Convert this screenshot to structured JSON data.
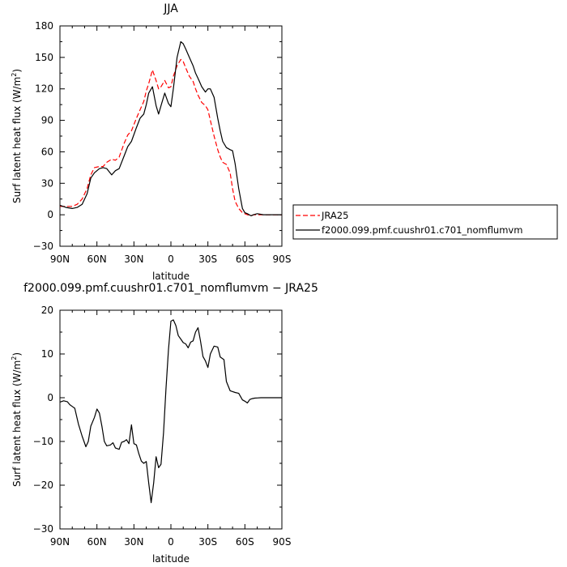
{
  "chart_data": [
    {
      "type": "line",
      "title": "JJA",
      "xlabel": "latitude",
      "ylabel": "Surf latent heat flux (W/m",
      "ylabel_sup": "2",
      "ylabel_tail": ")",
      "xlim": [
        90,
        -90
      ],
      "ylim": [
        -30,
        180
      ],
      "x_ticks": [
        90,
        60,
        30,
        0,
        -30,
        -60,
        -90
      ],
      "x_tick_labels": [
        "90N",
        "60N",
        "30N",
        "0",
        "30S",
        "60S",
        "90S"
      ],
      "y_ticks": [
        -30,
        0,
        30,
        60,
        90,
        120,
        150,
        180
      ],
      "y_tick_labels": [
        "−30",
        "0",
        "30",
        "60",
        "90",
        "120",
        "150",
        "180"
      ],
      "legend_position": "right",
      "series": [
        {
          "name": "JRA25",
          "color": "#ff0000",
          "style": "dashed",
          "x": [
            90,
            85,
            80,
            76,
            72,
            68,
            65,
            62,
            58,
            55,
            52,
            48,
            45,
            42,
            38,
            35,
            32,
            28,
            25,
            22,
            20,
            18,
            15,
            12,
            10,
            8,
            5,
            2,
            0,
            -2,
            -5,
            -8,
            -10,
            -12,
            -15,
            -18,
            -20,
            -22,
            -25,
            -28,
            -30,
            -32,
            -35,
            -38,
            -40,
            -42,
            -45,
            -48,
            -50,
            -52,
            -55,
            -58,
            -60,
            -62,
            -65,
            -67,
            -70,
            -75,
            -80,
            -85,
            -90
          ],
          "values": [
            8,
            8,
            8,
            10,
            15,
            25,
            38,
            45,
            46,
            46,
            50,
            53,
            52,
            55,
            68,
            76,
            80,
            92,
            100,
            108,
            118,
            125,
            138,
            128,
            120,
            122,
            128,
            121,
            122,
            132,
            142,
            148,
            146,
            140,
            132,
            127,
            120,
            114,
            107,
            104,
            100,
            90,
            75,
            62,
            55,
            50,
            48,
            40,
            25,
            13,
            6,
            2,
            1,
            0,
            -1,
            0,
            0,
            0,
            0,
            0,
            0
          ]
        },
        {
          "name": "f2000.099.pmf.cuushr01.c701_nomflumvm",
          "color": "#000000",
          "style": "solid",
          "x": [
            90,
            85,
            80,
            76,
            72,
            68,
            65,
            62,
            58,
            55,
            52,
            48,
            45,
            42,
            38,
            35,
            32,
            28,
            25,
            22,
            20,
            18,
            15,
            12,
            10,
            8,
            5,
            2,
            0,
            -2,
            -5,
            -8,
            -10,
            -12,
            -15,
            -18,
            -20,
            -22,
            -25,
            -28,
            -30,
            -32,
            -35,
            -38,
            -40,
            -42,
            -45,
            -48,
            -50,
            -52,
            -55,
            -58,
            -60,
            -62,
            -65,
            -67,
            -70,
            -75,
            -80,
            -85,
            -90
          ],
          "values": [
            9,
            7,
            6,
            7,
            10,
            20,
            35,
            40,
            44,
            45,
            44,
            38,
            42,
            44,
            56,
            65,
            70,
            83,
            92,
            96,
            105,
            116,
            122,
            104,
            96,
            104,
            116,
            106,
            103,
            120,
            150,
            165,
            163,
            158,
            150,
            142,
            135,
            130,
            122,
            117,
            120,
            120,
            112,
            92,
            80,
            70,
            64,
            62,
            61,
            49,
            25,
            6,
            2,
            1,
            -1,
            0,
            1,
            0,
            0,
            0,
            0
          ]
        }
      ]
    },
    {
      "type": "line",
      "title": "f2000.099.pmf.cuushr01.c701_nomflumvm − JRA25",
      "xlabel": "latitude",
      "ylabel": "Surf latent heat flux (W/m",
      "ylabel_sup": "2",
      "ylabel_tail": ")",
      "xlim": [
        90,
        -90
      ],
      "ylim": [
        -30,
        20
      ],
      "x_ticks": [
        90,
        60,
        30,
        0,
        -30,
        -60,
        -90
      ],
      "x_tick_labels": [
        "90N",
        "60N",
        "30N",
        "0",
        "30S",
        "60S",
        "90S"
      ],
      "y_ticks": [
        -30,
        -20,
        -10,
        0,
        10,
        20
      ],
      "y_tick_labels": [
        "−30",
        "−20",
        "−10",
        "0",
        "10",
        "20"
      ],
      "series": [
        {
          "color": "#000000",
          "style": "solid",
          "x": [
            90,
            87,
            84,
            82,
            80,
            78,
            75,
            72,
            69,
            67,
            65,
            62,
            60,
            58,
            56,
            54,
            52,
            49,
            47,
            45,
            42,
            40,
            38,
            36,
            34,
            32,
            30,
            28,
            26,
            24,
            22,
            20,
            18,
            16,
            14,
            12,
            10,
            8,
            6,
            4,
            2,
            0,
            -2,
            -4,
            -6,
            -8,
            -10,
            -12,
            -14,
            -16,
            -18,
            -20,
            -22,
            -24,
            -26,
            -28,
            -30,
            -32,
            -35,
            -38,
            -40,
            -43,
            -45,
            -48,
            -50,
            -52,
            -55,
            -58,
            -60,
            -62,
            -64,
            -66,
            -68,
            -70,
            -73,
            -76,
            -79,
            -82,
            -85,
            -88,
            -90
          ],
          "values": [
            -1,
            -0.7,
            -0.9,
            -1.6,
            -2,
            -2.4,
            -6,
            -8.8,
            -11.2,
            -10,
            -6.5,
            -4.5,
            -2.6,
            -3.5,
            -6.5,
            -10,
            -11,
            -10.8,
            -10.3,
            -11.5,
            -11.8,
            -10.2,
            -10,
            -9.6,
            -10.5,
            -6.2,
            -10.5,
            -10.8,
            -12.8,
            -14.5,
            -15,
            -14.6,
            -19.5,
            -24,
            -19.5,
            -13.5,
            -16,
            -15.2,
            -8,
            2,
            11,
            17.5,
            17.8,
            16.5,
            14.2,
            13.4,
            12.6,
            12.3,
            11.4,
            12.7,
            13,
            15,
            16,
            13,
            9.4,
            8.4,
            6.9,
            10,
            11.8,
            11.6,
            9.3,
            8.7,
            3.7,
            1.6,
            1.4,
            1.2,
            1,
            -0.5,
            -0.8,
            -1.2,
            -0.4,
            -0.2,
            -0.1,
            -0.05,
            0,
            0,
            0,
            0,
            0,
            0,
            0
          ]
        }
      ]
    }
  ]
}
